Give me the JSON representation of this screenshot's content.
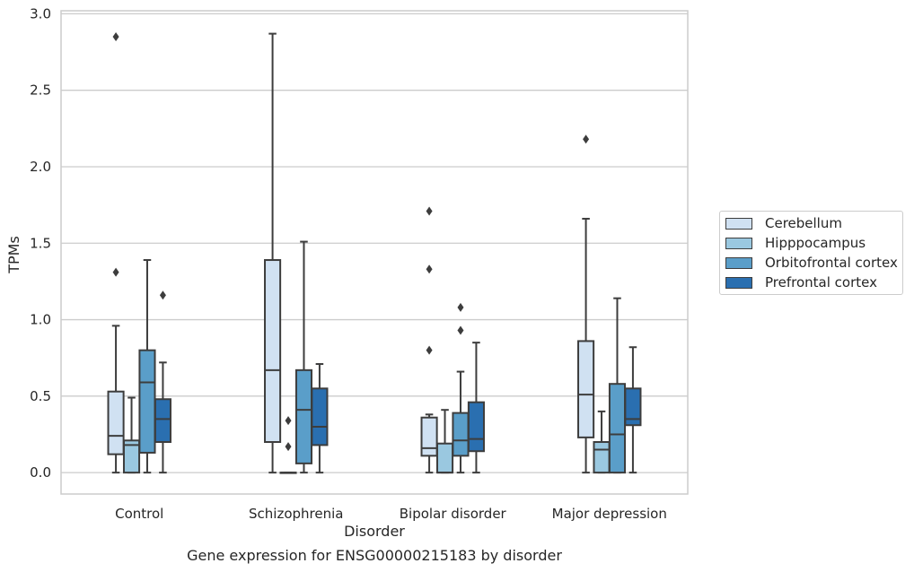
{
  "chart_data": {
    "type": "box",
    "title": "Gene expression for ENSG00000215183 by disorder",
    "xlabel": "Disorder",
    "ylabel": "TPMs",
    "ylim": [
      -0.14,
      3.02
    ],
    "yticks": [
      "0.0",
      "0.5",
      "1.0",
      "1.5",
      "2.0",
      "2.5",
      "3.0"
    ],
    "grid": true,
    "legend_position": "right",
    "categories": [
      "Control",
      "Schizophrenia",
      "Bipolar disorder",
      "Major depression"
    ],
    "series": [
      {
        "name": "Cerebellum",
        "color": "#d0e1f2",
        "boxes": [
          {
            "whislo": 0.0,
            "q1": 0.12,
            "med": 0.24,
            "q3": 0.53,
            "whishi": 0.96,
            "fliers": [
              1.31,
              2.85
            ]
          },
          {
            "whislo": 0.0,
            "q1": 0.2,
            "med": 0.67,
            "q3": 1.39,
            "whishi": 2.87,
            "fliers": []
          },
          {
            "whislo": 0.0,
            "q1": 0.11,
            "med": 0.16,
            "q3": 0.36,
            "whishi": 0.38,
            "fliers": [
              0.8,
              1.33,
              1.71
            ]
          },
          {
            "whislo": 0.0,
            "q1": 0.23,
            "med": 0.51,
            "q3": 0.86,
            "whishi": 1.66,
            "fliers": [
              2.18
            ]
          }
        ]
      },
      {
        "name": "Hipppocampus",
        "color": "#9ac8e0",
        "boxes": [
          {
            "whislo": 0.0,
            "q1": 0.0,
            "med": 0.18,
            "q3": 0.21,
            "whishi": 0.49,
            "fliers": []
          },
          {
            "whislo": 0.0,
            "q1": 0.0,
            "med": 0.0,
            "q3": 0.0,
            "whishi": 0.0,
            "fliers": [
              0.17,
              0.34
            ]
          },
          {
            "whislo": 0.0,
            "q1": 0.0,
            "med": 0.0,
            "q3": 0.19,
            "whishi": 0.41,
            "fliers": []
          },
          {
            "whislo": 0.0,
            "q1": 0.0,
            "med": 0.15,
            "q3": 0.2,
            "whishi": 0.4,
            "fliers": []
          }
        ]
      },
      {
        "name": "Orbitofrontal cortex",
        "color": "#5a9ec9",
        "boxes": [
          {
            "whislo": 0.0,
            "q1": 0.13,
            "med": 0.59,
            "q3": 0.8,
            "whishi": 1.39,
            "fliers": []
          },
          {
            "whislo": 0.0,
            "q1": 0.06,
            "med": 0.41,
            "q3": 0.67,
            "whishi": 1.51,
            "fliers": []
          },
          {
            "whislo": 0.0,
            "q1": 0.11,
            "med": 0.21,
            "q3": 0.39,
            "whishi": 0.66,
            "fliers": [
              0.93,
              1.08
            ]
          },
          {
            "whislo": 0.0,
            "q1": 0.0,
            "med": 0.25,
            "q3": 0.58,
            "whishi": 1.14,
            "fliers": []
          }
        ]
      },
      {
        "name": "Prefrontal cortex",
        "color": "#2a6fb0",
        "boxes": [
          {
            "whislo": 0.0,
            "q1": 0.2,
            "med": 0.35,
            "q3": 0.48,
            "whishi": 0.72,
            "fliers": [
              1.16
            ]
          },
          {
            "whislo": 0.0,
            "q1": 0.18,
            "med": 0.3,
            "q3": 0.55,
            "whishi": 0.71,
            "fliers": []
          },
          {
            "whislo": 0.0,
            "q1": 0.14,
            "med": 0.22,
            "q3": 0.46,
            "whishi": 0.85,
            "fliers": []
          },
          {
            "whislo": 0.0,
            "q1": 0.31,
            "med": 0.35,
            "q3": 0.55,
            "whishi": 0.82,
            "fliers": []
          }
        ]
      }
    ]
  }
}
